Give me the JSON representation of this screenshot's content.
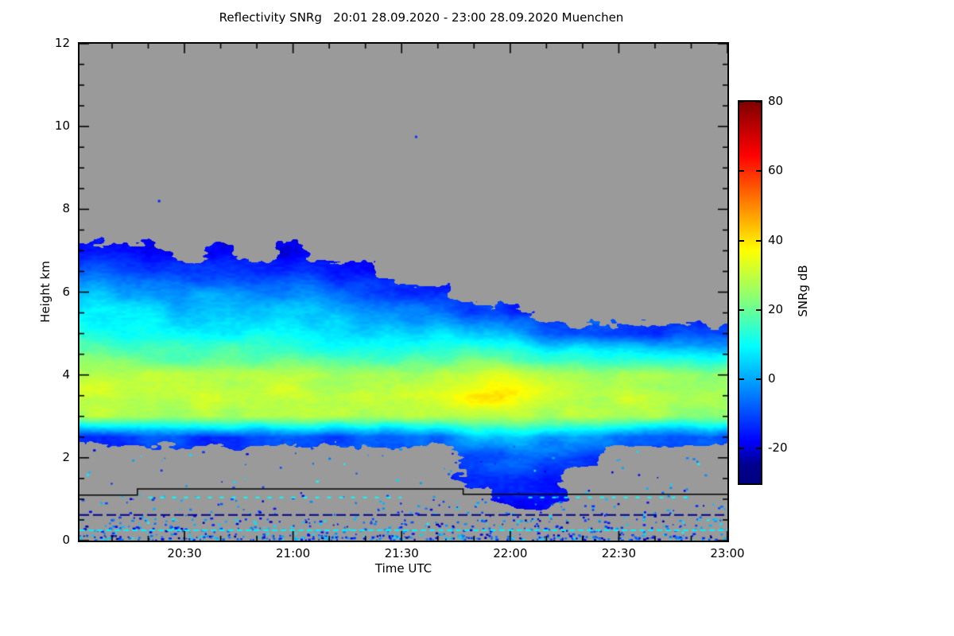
{
  "chart_data": {
    "type": "heatmap",
    "title": "Reflectivity SNRg   20:01 28.09.2020 - 23:00 28.09.2020 Muenchen",
    "xlabel": "Time UTC",
    "ylabel": "Height km",
    "x_start": "20:01",
    "x_end": "23:00",
    "x_ticks_major": [
      "20:30",
      "21:00",
      "21:30",
      "22:00",
      "22:30",
      "23:00"
    ],
    "x_minor_step_minutes": 10,
    "y_range": [
      0,
      12
    ],
    "y_ticks_major": [
      0,
      2,
      4,
      6,
      8,
      10,
      12
    ],
    "y_major_step": 2,
    "y_minor_step": 0.5,
    "no_data_color": "#9a9a9a",
    "colorbar": {
      "label": "SNRg dB",
      "min": -30,
      "max": 80,
      "ticks": [
        80,
        60,
        40,
        20,
        0,
        -20
      ],
      "stops": [
        {
          "pos": 0.0,
          "color": "#000080"
        },
        {
          "pos": 0.05,
          "color": "#00008f"
        },
        {
          "pos": 0.11,
          "color": "#0000ff"
        },
        {
          "pos": 0.36,
          "color": "#00ffff"
        },
        {
          "pos": 0.475,
          "color": "#7fff7f"
        },
        {
          "pos": 0.61,
          "color": "#ffff00"
        },
        {
          "pos": 0.735,
          "color": "#ff7f00"
        },
        {
          "pos": 0.86,
          "color": "#ff0000"
        },
        {
          "pos": 1.0,
          "color": "#7f0000"
        }
      ]
    },
    "grid": {
      "height_start": 0,
      "height_step": 0.5,
      "height_count": 25,
      "times": [
        "20:00",
        "20:10",
        "20:20",
        "20:30",
        "20:40",
        "20:50",
        "21:00",
        "21:10",
        "21:20",
        "21:30",
        "21:40",
        "21:50",
        "22:00",
        "22:10",
        "22:20",
        "22:30",
        "22:40",
        "22:50",
        "23:00"
      ],
      "values": [
        [
          null,
          null,
          null,
          null,
          null,
          -12,
          28,
          32,
          30,
          20,
          13,
          8,
          2,
          -8,
          -16,
          null,
          null,
          null,
          null,
          null,
          null,
          null,
          null,
          null,
          null
        ],
        [
          null,
          null,
          null,
          null,
          null,
          -12,
          28,
          32,
          29,
          19,
          12,
          7,
          1,
          -9,
          -16,
          null,
          null,
          null,
          null,
          null,
          null,
          null,
          null,
          null,
          null
        ],
        [
          null,
          null,
          null,
          null,
          null,
          -10,
          27,
          30,
          28,
          18,
          10,
          5,
          0,
          -10,
          -17,
          null,
          null,
          null,
          null,
          null,
          null,
          null,
          null,
          null,
          null
        ],
        [
          null,
          null,
          null,
          null,
          null,
          -12,
          27,
          30,
          27,
          17,
          9,
          4,
          -2,
          -14,
          null,
          null,
          null,
          null,
          null,
          null,
          null,
          null,
          null,
          null,
          null
        ],
        [
          null,
          null,
          null,
          null,
          null,
          -11,
          28,
          31,
          28,
          18,
          10,
          4,
          -2,
          -13,
          -18,
          null,
          null,
          null,
          null,
          null,
          null,
          null,
          null,
          null,
          null
        ],
        [
          null,
          null,
          null,
          null,
          null,
          -11,
          28,
          31,
          27,
          17,
          9,
          3,
          -4,
          -15,
          null,
          null,
          null,
          null,
          null,
          null,
          null,
          null,
          null,
          null,
          null
        ],
        [
          null,
          null,
          null,
          null,
          null,
          -10,
          29,
          33,
          28,
          18,
          10,
          4,
          -3,
          -13,
          -18,
          null,
          null,
          null,
          null,
          null,
          null,
          null,
          null,
          null,
          null
        ],
        [
          null,
          null,
          null,
          null,
          null,
          -10,
          28,
          31,
          26,
          16,
          8,
          2,
          -6,
          -16,
          null,
          null,
          null,
          null,
          null,
          null,
          null,
          null,
          null,
          null,
          null
        ],
        [
          null,
          null,
          null,
          null,
          null,
          -8,
          28,
          31,
          26,
          15,
          7,
          0,
          -10,
          -18,
          null,
          null,
          null,
          null,
          null,
          null,
          null,
          null,
          null,
          null,
          null
        ],
        [
          null,
          null,
          null,
          null,
          null,
          -8,
          29,
          33,
          27,
          15,
          6,
          -2,
          -14,
          null,
          null,
          null,
          null,
          null,
          null,
          null,
          null,
          null,
          null,
          null,
          null
        ],
        [
          null,
          null,
          null,
          null,
          null,
          -6,
          30,
          35,
          28,
          16,
          5,
          -5,
          -16,
          null,
          null,
          null,
          null,
          null,
          null,
          null,
          null,
          null,
          null,
          null,
          null
        ],
        [
          null,
          null,
          null,
          -14,
          -10,
          5,
          31,
          38,
          33,
          16,
          3,
          -10,
          null,
          null,
          null,
          null,
          null,
          null,
          null,
          null,
          null,
          null,
          null,
          null,
          null
        ],
        [
          null,
          null,
          -16,
          -12,
          -8,
          2,
          31,
          38,
          33,
          15,
          0,
          -14,
          null,
          null,
          null,
          null,
          null,
          null,
          null,
          null,
          null,
          null,
          null,
          null,
          null
        ],
        [
          null,
          null,
          -17,
          -13,
          -9,
          0,
          28,
          33,
          28,
          12,
          -10,
          null,
          null,
          null,
          null,
          null,
          null,
          null,
          null,
          null,
          null,
          null,
          null,
          null,
          null
        ],
        [
          null,
          null,
          null,
          null,
          -14,
          -2,
          28,
          31,
          27,
          12,
          -8,
          null,
          null,
          null,
          null,
          null,
          null,
          null,
          null,
          null,
          null,
          null,
          null,
          null,
          null
        ],
        [
          null,
          null,
          null,
          null,
          null,
          -8,
          27,
          30,
          26,
          10,
          -10,
          null,
          null,
          null,
          null,
          null,
          null,
          null,
          null,
          null,
          null,
          null,
          null,
          null,
          null
        ],
        [
          null,
          null,
          null,
          null,
          null,
          -10,
          26,
          29,
          25,
          8,
          -12,
          null,
          null,
          null,
          null,
          null,
          null,
          null,
          null,
          null,
          null,
          null,
          null,
          null,
          null
        ],
        [
          null,
          null,
          null,
          null,
          null,
          -10,
          25,
          28,
          24,
          8,
          -12,
          null,
          null,
          null,
          null,
          null,
          null,
          null,
          null,
          null,
          null,
          null,
          null,
          null,
          null
        ],
        [
          null,
          null,
          null,
          null,
          null,
          -10,
          25,
          27,
          24,
          7,
          -13,
          null,
          null,
          null,
          null,
          null,
          null,
          null,
          null,
          null,
          null,
          null,
          null,
          null,
          null
        ]
      ]
    },
    "noise_bands": [
      {
        "h_min": 0.02,
        "h_max": 0.14,
        "density": 0.55,
        "v_min": -26,
        "v_max": 8
      },
      {
        "h_min": 0.14,
        "h_max": 0.55,
        "density": 0.16,
        "v_min": -24,
        "v_max": 10
      },
      {
        "h_min": 0.55,
        "h_max": 1.12,
        "density": 0.05,
        "v_min": -22,
        "v_max": 6
      },
      {
        "h_min": 1.15,
        "h_max": 2.35,
        "density": 0.012,
        "v_min": -20,
        "v_max": 10
      }
    ],
    "lines": [
      {
        "type": "step",
        "color": "#000000",
        "width": 1.5,
        "points": [
          [
            "20:01",
            1.1
          ],
          [
            "20:17",
            1.1
          ],
          [
            "20:17",
            1.25
          ],
          [
            "21:47",
            1.25
          ],
          [
            "21:47",
            1.12
          ],
          [
            "23:00",
            1.12
          ]
        ]
      },
      {
        "type": "dashed",
        "value": 8,
        "width": 2,
        "h": 0.25,
        "from": "20:01",
        "to": "23:00",
        "dash": [
          7,
          4
        ]
      },
      {
        "type": "dashed",
        "value": -26,
        "width": 2,
        "h": 0.62,
        "from": "20:01",
        "to": "23:00",
        "dash": [
          12,
          5
        ]
      },
      {
        "type": "dashed",
        "value": 10,
        "width": 2,
        "h": 1.04,
        "from": "20:20",
        "to": "21:30",
        "dash": [
          5,
          10
        ]
      },
      {
        "type": "dashed",
        "value": 10,
        "width": 2,
        "h": 1.04,
        "from": "22:05",
        "to": "22:50",
        "dash": [
          5,
          10
        ]
      }
    ],
    "isolated_points": [
      {
        "t": "21:34",
        "h": 9.75,
        "v": -12
      },
      {
        "t": "20:23",
        "h": 8.2,
        "v": -14
      }
    ]
  }
}
